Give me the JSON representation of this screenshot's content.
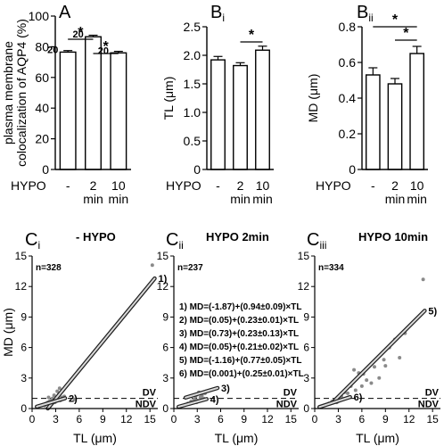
{
  "chart_data": [
    {
      "panel": "A",
      "type": "bar",
      "ylabel": "plasma membrane colocalization of AQP4 (%)",
      "ylabel_lines": [
        "plasma membrane",
        "colocalization of AQP4 (%)"
      ],
      "ylim": [
        0,
        100
      ],
      "yticks": [
        "0",
        "20",
        "40",
        "60",
        "80",
        "100"
      ],
      "row_label": "HYPO",
      "categories": [
        "-",
        "2 min",
        "10 min"
      ],
      "cat_lines": [
        [
          "-"
        ],
        [
          "2",
          "min"
        ],
        [
          "10",
          "min"
        ]
      ],
      "values": [
        76.5,
        86.5,
        76.0
      ],
      "errors": [
        1.0,
        1.0,
        1.0
      ],
      "n_labels": [
        "20",
        "20",
        "20"
      ],
      "significance": [
        {
          "from": 0,
          "to": 1,
          "label": "*"
        },
        {
          "from": 1,
          "to": 2,
          "label": "*"
        }
      ]
    },
    {
      "panel": "Bi",
      "type": "bar",
      "ylabel": "TL (μm)",
      "ylim": [
        0,
        2.5
      ],
      "yticks": [
        "0",
        "0.5",
        "1.0",
        "1.5",
        "2.0",
        "2.5"
      ],
      "row_label": "HYPO",
      "categories": [
        "-",
        "2 min",
        "10 min"
      ],
      "cat_lines": [
        [
          "-"
        ],
        [
          "2",
          "min"
        ],
        [
          "10",
          "min"
        ]
      ],
      "values": [
        1.92,
        1.82,
        2.09
      ],
      "errors": [
        0.06,
        0.05,
        0.07
      ],
      "significance": [
        {
          "from": 1,
          "to": 2,
          "label": "*"
        }
      ]
    },
    {
      "panel": "Bii",
      "type": "bar",
      "ylabel": "MD (μm)",
      "ylim": [
        0,
        0.8
      ],
      "yticks": [
        "0",
        "0.2",
        "0.4",
        "0.6",
        "0.8"
      ],
      "row_label": "HYPO",
      "categories": [
        "-",
        "2 min",
        "10 min"
      ],
      "cat_lines": [
        [
          "-"
        ],
        [
          "2",
          "min"
        ],
        [
          "10",
          "min"
        ]
      ],
      "values": [
        0.53,
        0.48,
        0.65
      ],
      "errors": [
        0.04,
        0.03,
        0.04
      ],
      "significance": [
        {
          "from": 0,
          "to": 2,
          "label": "*"
        },
        {
          "from": 1,
          "to": 2,
          "label": "*"
        }
      ]
    },
    {
      "panel": "Ci",
      "type": "scatter",
      "title": "- HYPO",
      "n": "n=328",
      "xlabel": "TL (μm)",
      "ylabel": "MD (μm)",
      "xlim": [
        0,
        16
      ],
      "ylim": [
        0,
        15
      ],
      "xticks": [
        0,
        3,
        6,
        9,
        12,
        15
      ],
      "yticks": [
        0,
        3,
        6,
        9,
        12,
        15
      ],
      "threshold": {
        "y": 1.0,
        "upper_label": "DV",
        "lower_label": "NDV"
      },
      "fits": [
        {
          "label": "1)",
          "intercept": -1.87,
          "slope": 0.94,
          "x_range": [
            2.0,
            15.6
          ]
        },
        {
          "label": "2)",
          "intercept": 0.05,
          "slope": 0.23,
          "x_range": [
            0.6,
            4.2
          ]
        }
      ],
      "points": [
        [
          15.3,
          14.1
        ],
        [
          5.4,
          0.9
        ],
        [
          3.2,
          1.7
        ],
        [
          3.5,
          2.0
        ],
        [
          2.8,
          1.3
        ],
        [
          3.0,
          0.9
        ],
        [
          2.2,
          0.7
        ],
        [
          2.6,
          1.0
        ],
        [
          1.8,
          0.5
        ],
        [
          2.0,
          0.6
        ],
        [
          3.8,
          1.1
        ],
        [
          2.4,
          0.8
        ],
        [
          1.5,
          0.4
        ],
        [
          1.2,
          0.3
        ],
        [
          3.4,
          1.4
        ],
        [
          2.9,
          0.6
        ],
        [
          1.6,
          0.3
        ],
        [
          4.1,
          1.2
        ],
        [
          2.1,
          1.1
        ],
        [
          3.6,
          0.8
        ]
      ]
    },
    {
      "panel": "Cii",
      "type": "scatter",
      "title": "HYPO 2min",
      "n": "n=237",
      "xlabel": "TL (μm)",
      "xlim": [
        0,
        16
      ],
      "ylim": [
        0,
        15
      ],
      "xticks": [
        0,
        3,
        6,
        9,
        12,
        15
      ],
      "yticks": [
        0,
        3,
        6,
        9,
        12,
        15
      ],
      "threshold": {
        "y": 1.0,
        "upper_label": "DV",
        "lower_label": "NDV"
      },
      "equations": [
        "1) MD=(-1.87)+(0.94±0.09)×TL",
        "2) MD=(0.05)+(0.23±0.01)×TL",
        "3) MD=(0.73)+(0.23±0.13)×TL",
        "4) MD=(0.05)+(0.21±0.02)×TL",
        "5) MD=(-1.16)+(0.77±0.05)×TL",
        "6) MD=(0.001)+(0.25±0.01)×TL"
      ],
      "fits": [
        {
          "label": "3)",
          "intercept": 0.73,
          "slope": 0.23,
          "x_range": [
            1.5,
            5.6
          ]
        },
        {
          "label": "4)",
          "intercept": 0.05,
          "slope": 0.21,
          "x_range": [
            0.6,
            4.2
          ]
        }
      ],
      "points": [
        [
          3.2,
          1.6
        ],
        [
          4.2,
          1.7
        ],
        [
          2.8,
          1.2
        ],
        [
          3.6,
          1.3
        ],
        [
          2.2,
          0.7
        ],
        [
          1.8,
          0.5
        ],
        [
          2.6,
          0.9
        ],
        [
          3.0,
          0.8
        ],
        [
          1.5,
          0.4
        ],
        [
          2.4,
          0.6
        ],
        [
          3.4,
          1.1
        ],
        [
          4.0,
          1.5
        ],
        [
          2.0,
          0.5
        ],
        [
          1.2,
          0.3
        ],
        [
          2.9,
          0.6
        ],
        [
          3.8,
          1.0
        ]
      ]
    },
    {
      "panel": "Ciii",
      "type": "scatter",
      "title": "HYPO 10min",
      "n": "n=334",
      "xlabel": "TL (μm)",
      "xlim": [
        0,
        16
      ],
      "ylim": [
        0,
        15
      ],
      "xticks": [
        0,
        3,
        6,
        9,
        12,
        15
      ],
      "yticks": [
        0,
        3,
        6,
        9,
        12,
        15
      ],
      "threshold": {
        "y": 1.0,
        "upper_label": "DV",
        "lower_label": "NDV"
      },
      "fits": [
        {
          "label": "5)",
          "intercept": -1.16,
          "slope": 0.77,
          "x_range": [
            2.5,
            14.0
          ]
        },
        {
          "label": "6)",
          "intercept": 0.001,
          "slope": 0.25,
          "x_range": [
            0.6,
            4.5
          ]
        }
      ],
      "points": [
        [
          13.8,
          12.7
        ],
        [
          11.5,
          7.4
        ],
        [
          10.2,
          6.8
        ],
        [
          9.5,
          6.0
        ],
        [
          10.8,
          5.0
        ],
        [
          9.0,
          4.2
        ],
        [
          7.6,
          4.1
        ],
        [
          8.8,
          4.8
        ],
        [
          6.2,
          3.4
        ],
        [
          6.6,
          2.8
        ],
        [
          7.2,
          2.5
        ],
        [
          5.6,
          3.5
        ],
        [
          5.0,
          3.8
        ],
        [
          4.6,
          2.2
        ],
        [
          5.2,
          1.8
        ],
        [
          4.2,
          1.5
        ],
        [
          3.8,
          1.6
        ],
        [
          3.4,
          1.2
        ],
        [
          3.0,
          1.1
        ],
        [
          2.6,
          0.9
        ],
        [
          2.2,
          0.7
        ],
        [
          1.8,
          0.5
        ],
        [
          3.2,
          0.8
        ],
        [
          2.8,
          0.6
        ],
        [
          1.5,
          0.4
        ],
        [
          4.0,
          1.9
        ],
        [
          6.0,
          2.2
        ],
        [
          8.2,
          3.0
        ]
      ]
    }
  ],
  "panel_labels": {
    "a": "A",
    "bi_main": "B",
    "bi_sub": "i",
    "bii_main": "B",
    "bii_sub": "ii",
    "ci_main": "C",
    "ci_sub": "i",
    "cii_main": "C",
    "cii_sub": "ii",
    "ciii_main": "C",
    "ciii_sub": "iii"
  }
}
